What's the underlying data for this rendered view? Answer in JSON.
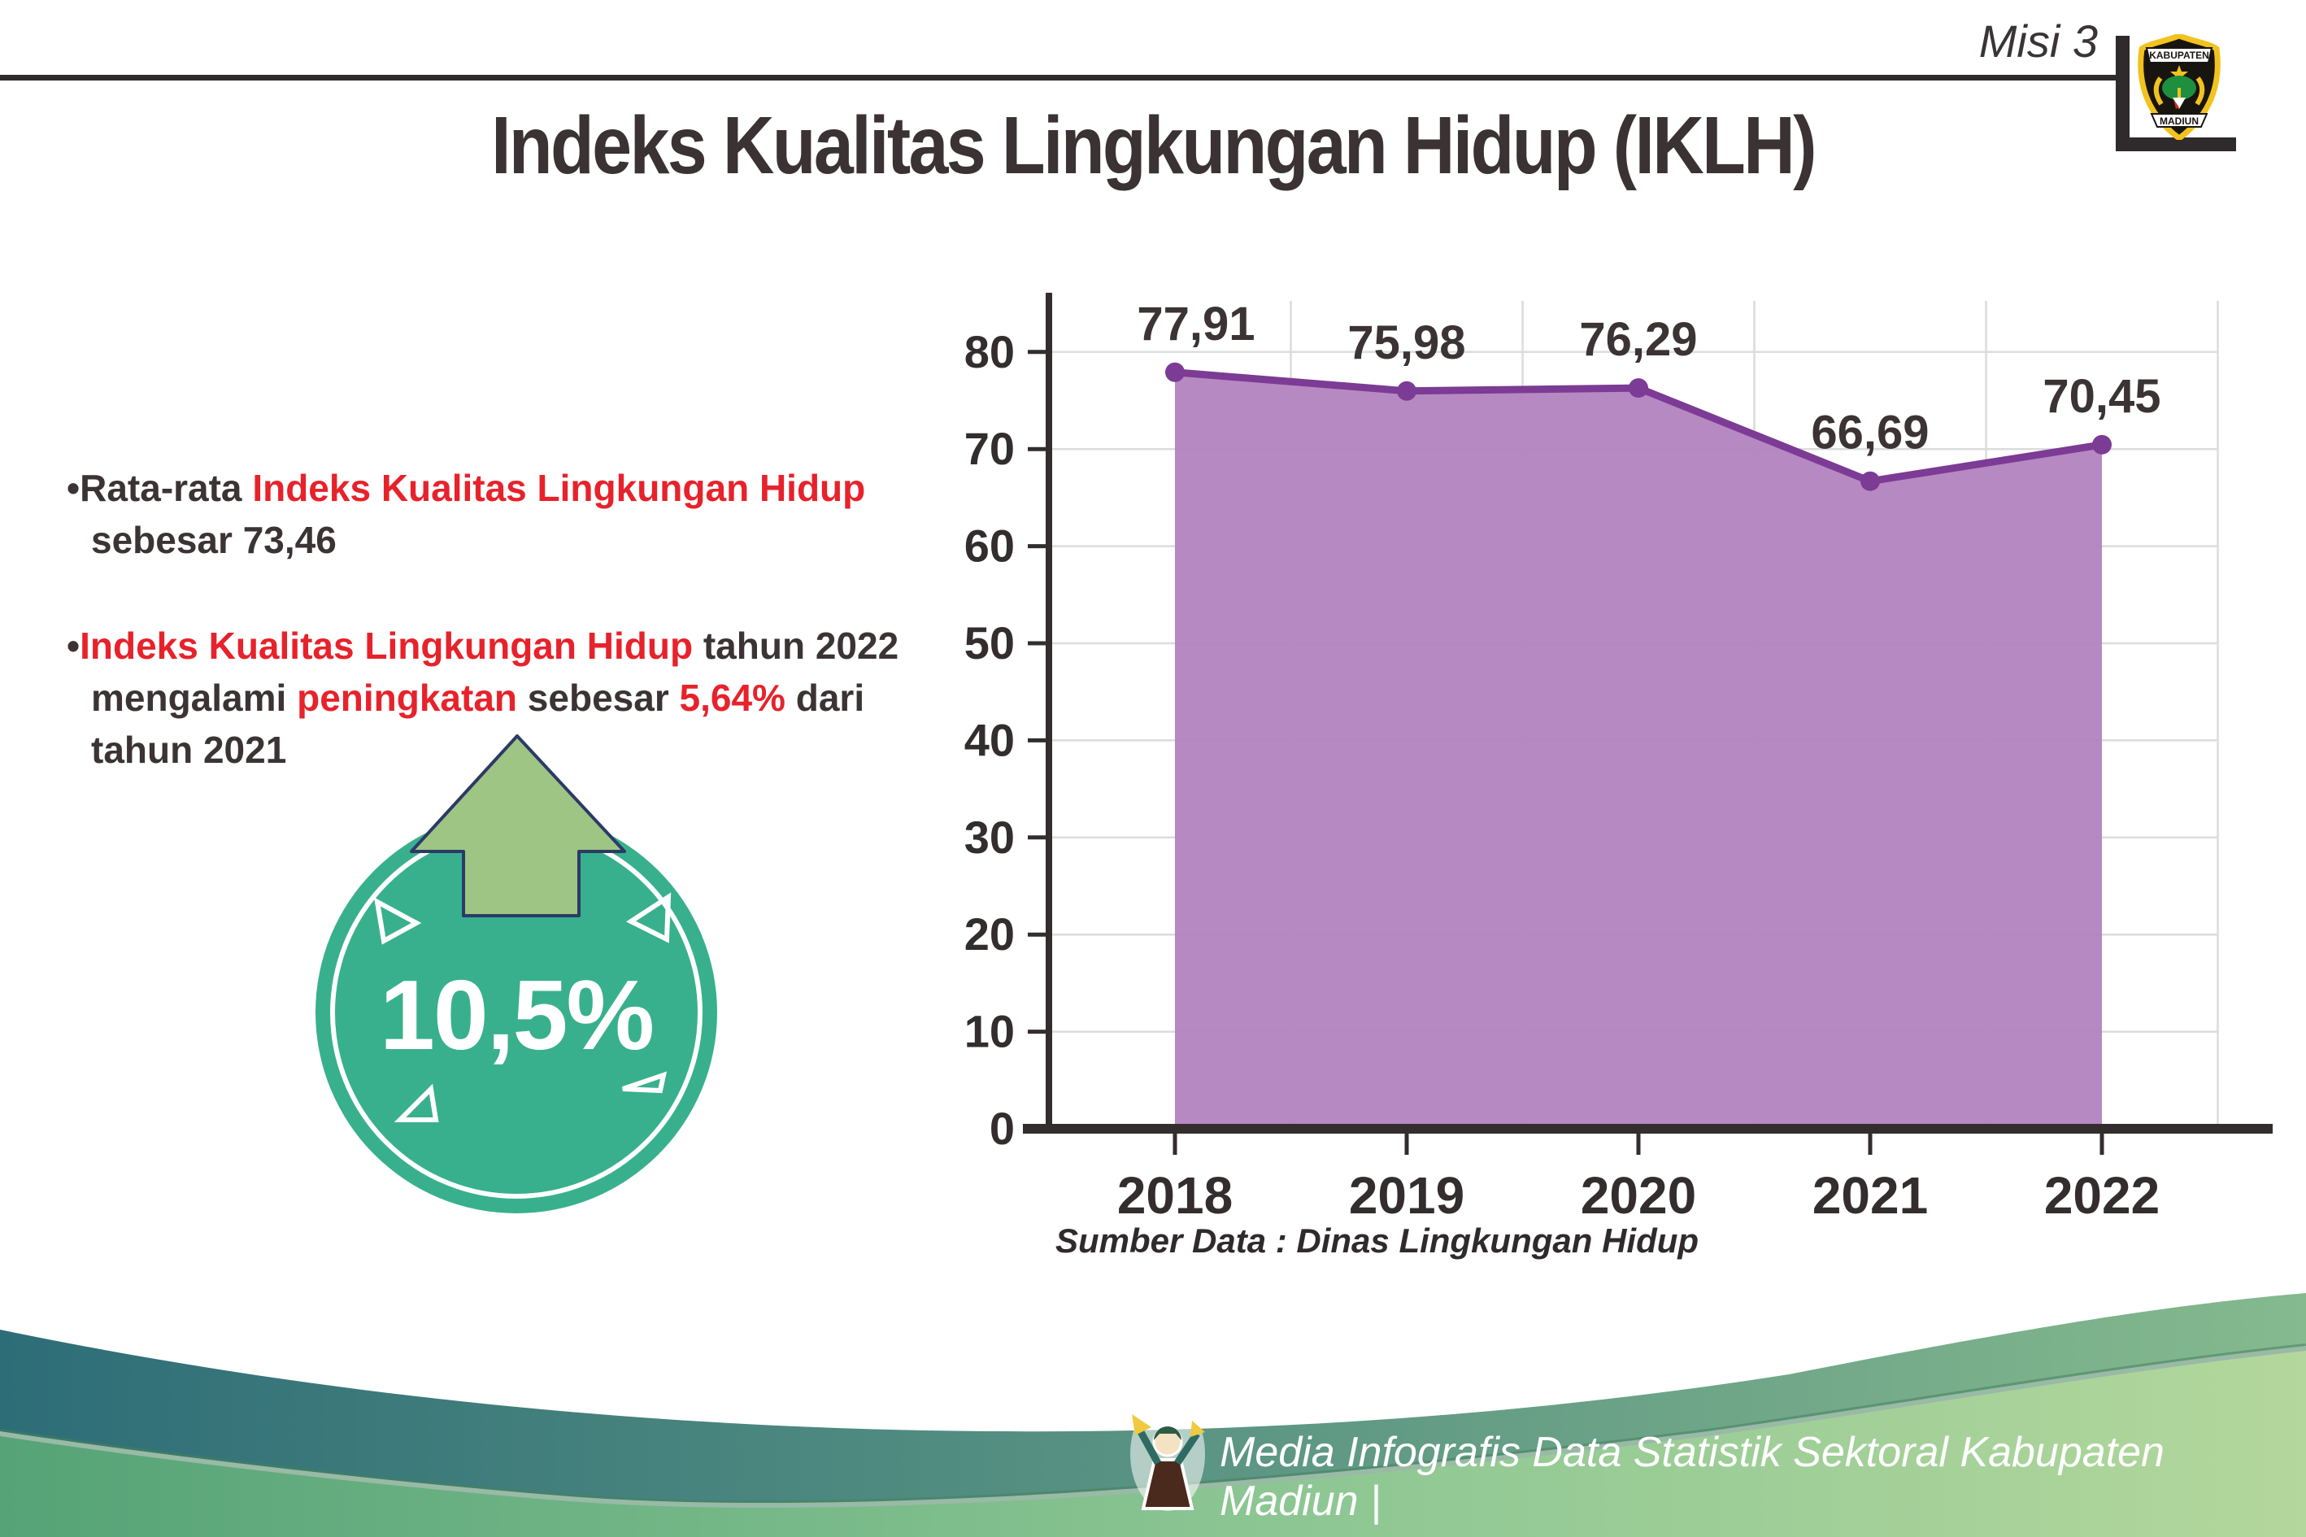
{
  "header": {
    "misi_label": "Misi 3",
    "logo": {
      "top_text": "KABUPATEN",
      "bottom_text": "MADIUN"
    }
  },
  "title": "Indeks Kualitas Lingkungan Hidup (IKLH)",
  "bullets": [
    {
      "segments": [
        {
          "text": "Rata-rata ",
          "color": "dark"
        },
        {
          "text": "Indeks Kualitas Lingkungan Hidup",
          "color": "red"
        },
        {
          "text": " sebesar 73,46",
          "color": "dark"
        }
      ]
    },
    {
      "segments": [
        {
          "text": "Indeks Kualitas Lingkungan Hidup",
          "color": "red"
        },
        {
          "text": " tahun 2022 mengalami ",
          "color": "dark"
        },
        {
          "text": "peningkatan",
          "color": "red"
        },
        {
          "text": " sebesar ",
          "color": "dark"
        },
        {
          "text": "5,64%",
          "color": "red"
        },
        {
          "text": " dari tahun 2021",
          "color": "dark"
        }
      ]
    }
  ],
  "badge": {
    "value": "10,5%"
  },
  "chart_data": {
    "type": "area",
    "categories": [
      "2018",
      "2019",
      "2020",
      "2021",
      "2022"
    ],
    "values": [
      77.91,
      75.98,
      76.29,
      66.69,
      70.45
    ],
    "value_labels": [
      "77,91",
      "75,98",
      "76,29",
      "66,69",
      "70,45"
    ],
    "title": "",
    "xlabel": "",
    "ylabel": "",
    "ylim": [
      0,
      80
    ],
    "ytick_step": 10,
    "grid": true,
    "legend": "none",
    "line_color": "#7c3b94",
    "fill_color": "#b383c0",
    "source": "Sumber Data : Dinas Lingkungan Hidup"
  },
  "footer": {
    "text": "Media Infografis Data Statistik Sektoral Kabupaten Madiun |"
  },
  "colors": {
    "accent_red": "#e7222b",
    "text_dark": "#3b3334",
    "axis_dark": "#332d2e",
    "badge_teal": "#38b08d",
    "arrow_green": "#9ec584",
    "arrow_outline": "#2c3a66",
    "wave_teal_left": "#2d6d77",
    "wave_teal_right": "#85b98e",
    "wave_green_left": "#55a377",
    "wave_green_right": "#b3d79c"
  }
}
